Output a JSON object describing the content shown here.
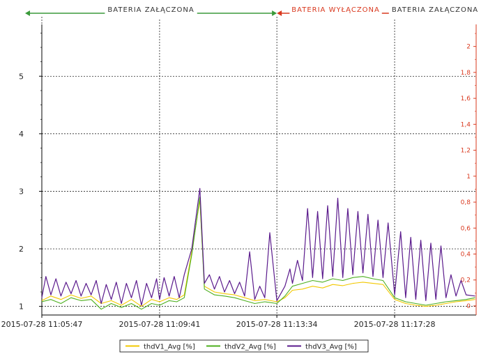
{
  "chart_data": {
    "type": "line",
    "title": "",
    "xlabel": "",
    "ylabel": "",
    "x_ticks": [
      "2015-07-28 11:05:47",
      "2015-07-28 11:09:41",
      "2015-07-28 11:13:34",
      "2015-07-28 11:17:28"
    ],
    "x_range": [
      "2015-07-28 11:05:47",
      "2015-07-28 11:20:10"
    ],
    "y_left": {
      "range": [
        0.85,
        5.9
      ],
      "ticks": [
        "1",
        "2",
        "3",
        "4",
        "5"
      ],
      "grid": true
    },
    "y_right": {
      "range": [
        -0.07,
        2.17
      ],
      "ticks": [
        "0",
        "0,2",
        "0,4",
        "0,6",
        "0,8",
        "1",
        "1,2",
        "1,4",
        "1,6",
        "1,8",
        "2"
      ],
      "color": "#d9381e"
    },
    "periods": [
      {
        "label": "BATERIA ZAŁĄCZONA",
        "start": "2015-07-28 11:04:40",
        "end": "2015-07-28 11:13:34",
        "color": "#3a9a3a"
      },
      {
        "label": "BATERIA WYŁĄCZONA",
        "start": "2015-07-28 11:13:34",
        "end": "2015-07-28 11:17:28",
        "color": "#d9381e"
      },
      {
        "label": "BATERIA ZAŁĄCZONA",
        "start": "2015-07-28 11:17:28",
        "end": "2015-07-28 11:20:10",
        "color": "#3a9a3a"
      }
    ],
    "vertical_grid_at": [
      "2015-07-28 11:05:47",
      "2015-07-28 11:09:41",
      "2015-07-28 11:13:34",
      "2015-07-28 11:17:28"
    ],
    "series": [
      {
        "name": "thdV1_Avg [%]",
        "color": "#f2c800",
        "points": [
          [
            "2015-07-28 11:05:47",
            1.1
          ],
          [
            "2015-07-28 11:06:05",
            1.18
          ],
          [
            "2015-07-28 11:06:25",
            1.12
          ],
          [
            "2015-07-28 11:06:45",
            1.2
          ],
          [
            "2015-07-28 11:07:05",
            1.14
          ],
          [
            "2015-07-28 11:07:25",
            1.18
          ],
          [
            "2015-07-28 11:07:45",
            1.05
          ],
          [
            "2015-07-28 11:08:05",
            1.1
          ],
          [
            "2015-07-28 11:08:25",
            1.02
          ],
          [
            "2015-07-28 11:08:45",
            1.12
          ],
          [
            "2015-07-28 11:09:05",
            1.0
          ],
          [
            "2015-07-28 11:09:25",
            1.12
          ],
          [
            "2015-07-28 11:09:41",
            1.08
          ],
          [
            "2015-07-28 11:10:00",
            1.15
          ],
          [
            "2015-07-28 11:10:15",
            1.12
          ],
          [
            "2015-07-28 11:10:30",
            1.2
          ],
          [
            "2015-07-28 11:10:45",
            1.95
          ],
          [
            "2015-07-28 11:11:01",
            2.85
          ],
          [
            "2015-07-28 11:11:10",
            1.35
          ],
          [
            "2015-07-28 11:11:30",
            1.25
          ],
          [
            "2015-07-28 11:11:50",
            1.22
          ],
          [
            "2015-07-28 11:12:10",
            1.2
          ],
          [
            "2015-07-28 11:12:30",
            1.15
          ],
          [
            "2015-07-28 11:12:50",
            1.1
          ],
          [
            "2015-07-28 11:13:10",
            1.12
          ],
          [
            "2015-07-28 11:13:34",
            1.08
          ],
          [
            "2015-07-28 11:13:50",
            1.15
          ],
          [
            "2015-07-28 11:14:05",
            1.28
          ],
          [
            "2015-07-28 11:14:25",
            1.3
          ],
          [
            "2015-07-28 11:14:45",
            1.35
          ],
          [
            "2015-07-28 11:15:05",
            1.32
          ],
          [
            "2015-07-28 11:15:25",
            1.38
          ],
          [
            "2015-07-28 11:15:45",
            1.36
          ],
          [
            "2015-07-28 11:16:05",
            1.4
          ],
          [
            "2015-07-28 11:16:25",
            1.42
          ],
          [
            "2015-07-28 11:16:45",
            1.4
          ],
          [
            "2015-07-28 11:17:05",
            1.38
          ],
          [
            "2015-07-28 11:17:28",
            1.12
          ],
          [
            "2015-07-28 11:17:50",
            1.05
          ],
          [
            "2015-07-28 11:18:10",
            1.02
          ],
          [
            "2015-07-28 11:18:30",
            1.0
          ],
          [
            "2015-07-28 11:18:50",
            1.02
          ],
          [
            "2015-07-28 11:19:10",
            1.05
          ],
          [
            "2015-07-28 11:19:30",
            1.08
          ],
          [
            "2015-07-28 11:19:50",
            1.1
          ],
          [
            "2015-07-28 11:20:08",
            1.12
          ]
        ]
      },
      {
        "name": "thdV2_Avg [%]",
        "color": "#4caf1e",
        "points": [
          [
            "2015-07-28 11:05:47",
            1.08
          ],
          [
            "2015-07-28 11:06:05",
            1.12
          ],
          [
            "2015-07-28 11:06:25",
            1.05
          ],
          [
            "2015-07-28 11:06:45",
            1.15
          ],
          [
            "2015-07-28 11:07:05",
            1.1
          ],
          [
            "2015-07-28 11:07:25",
            1.12
          ],
          [
            "2015-07-28 11:07:45",
            0.95
          ],
          [
            "2015-07-28 11:08:05",
            1.05
          ],
          [
            "2015-07-28 11:08:25",
            0.98
          ],
          [
            "2015-07-28 11:08:45",
            1.05
          ],
          [
            "2015-07-28 11:09:05",
            0.95
          ],
          [
            "2015-07-28 11:09:25",
            1.05
          ],
          [
            "2015-07-28 11:09:41",
            1.02
          ],
          [
            "2015-07-28 11:10:00",
            1.1
          ],
          [
            "2015-07-28 11:10:15",
            1.08
          ],
          [
            "2015-07-28 11:10:30",
            1.15
          ],
          [
            "2015-07-28 11:10:45",
            1.9
          ],
          [
            "2015-07-28 11:11:01",
            2.9
          ],
          [
            "2015-07-28 11:11:10",
            1.3
          ],
          [
            "2015-07-28 11:11:30",
            1.2
          ],
          [
            "2015-07-28 11:11:50",
            1.18
          ],
          [
            "2015-07-28 11:12:10",
            1.15
          ],
          [
            "2015-07-28 11:12:30",
            1.1
          ],
          [
            "2015-07-28 11:12:50",
            1.05
          ],
          [
            "2015-07-28 11:13:10",
            1.08
          ],
          [
            "2015-07-28 11:13:34",
            1.05
          ],
          [
            "2015-07-28 11:13:50",
            1.18
          ],
          [
            "2015-07-28 11:14:05",
            1.35
          ],
          [
            "2015-07-28 11:14:25",
            1.4
          ],
          [
            "2015-07-28 11:14:45",
            1.45
          ],
          [
            "2015-07-28 11:15:05",
            1.42
          ],
          [
            "2015-07-28 11:15:25",
            1.48
          ],
          [
            "2015-07-28 11:15:45",
            1.45
          ],
          [
            "2015-07-28 11:16:05",
            1.5
          ],
          [
            "2015-07-28 11:16:25",
            1.52
          ],
          [
            "2015-07-28 11:16:45",
            1.48
          ],
          [
            "2015-07-28 11:17:05",
            1.45
          ],
          [
            "2015-07-28 11:17:28",
            1.15
          ],
          [
            "2015-07-28 11:17:50",
            1.08
          ],
          [
            "2015-07-28 11:18:10",
            1.05
          ],
          [
            "2015-07-28 11:18:30",
            1.02
          ],
          [
            "2015-07-28 11:18:50",
            1.05
          ],
          [
            "2015-07-28 11:19:10",
            1.08
          ],
          [
            "2015-07-28 11:19:30",
            1.1
          ],
          [
            "2015-07-28 11:19:50",
            1.12
          ],
          [
            "2015-07-28 11:20:08",
            1.15
          ]
        ]
      },
      {
        "name": "thdV3_Avg [%]",
        "color": "#5a1a8c",
        "points": [
          [
            "2015-07-28 11:05:47",
            1.15
          ],
          [
            "2015-07-28 11:05:55",
            1.52
          ],
          [
            "2015-07-28 11:06:05",
            1.2
          ],
          [
            "2015-07-28 11:06:15",
            1.48
          ],
          [
            "2015-07-28 11:06:25",
            1.18
          ],
          [
            "2015-07-28 11:06:35",
            1.42
          ],
          [
            "2015-07-28 11:06:45",
            1.22
          ],
          [
            "2015-07-28 11:06:55",
            1.45
          ],
          [
            "2015-07-28 11:07:05",
            1.18
          ],
          [
            "2015-07-28 11:07:15",
            1.4
          ],
          [
            "2015-07-28 11:07:25",
            1.2
          ],
          [
            "2015-07-28 11:07:35",
            1.45
          ],
          [
            "2015-07-28 11:07:45",
            1.05
          ],
          [
            "2015-07-28 11:07:55",
            1.38
          ],
          [
            "2015-07-28 11:08:05",
            1.12
          ],
          [
            "2015-07-28 11:08:15",
            1.42
          ],
          [
            "2015-07-28 11:08:25",
            1.05
          ],
          [
            "2015-07-28 11:08:35",
            1.4
          ],
          [
            "2015-07-28 11:08:45",
            1.15
          ],
          [
            "2015-07-28 11:08:55",
            1.45
          ],
          [
            "2015-07-28 11:09:05",
            1.02
          ],
          [
            "2015-07-28 11:09:15",
            1.4
          ],
          [
            "2015-07-28 11:09:25",
            1.15
          ],
          [
            "2015-07-28 11:09:35",
            1.48
          ],
          [
            "2015-07-28 11:09:41",
            1.12
          ],
          [
            "2015-07-28 11:09:50",
            1.5
          ],
          [
            "2015-07-28 11:10:00",
            1.18
          ],
          [
            "2015-07-28 11:10:10",
            1.52
          ],
          [
            "2015-07-28 11:10:20",
            1.15
          ],
          [
            "2015-07-28 11:10:30",
            1.55
          ],
          [
            "2015-07-28 11:10:45",
            2.0
          ],
          [
            "2015-07-28 11:11:01",
            3.05
          ],
          [
            "2015-07-28 11:11:10",
            1.4
          ],
          [
            "2015-07-28 11:11:20",
            1.55
          ],
          [
            "2015-07-28 11:11:30",
            1.3
          ],
          [
            "2015-07-28 11:11:40",
            1.52
          ],
          [
            "2015-07-28 11:11:50",
            1.25
          ],
          [
            "2015-07-28 11:12:00",
            1.45
          ],
          [
            "2015-07-28 11:12:10",
            1.22
          ],
          [
            "2015-07-28 11:12:20",
            1.42
          ],
          [
            "2015-07-28 11:12:30",
            1.18
          ],
          [
            "2015-07-28 11:12:40",
            1.95
          ],
          [
            "2015-07-28 11:12:50",
            1.12
          ],
          [
            "2015-07-28 11:13:00",
            1.35
          ],
          [
            "2015-07-28 11:13:10",
            1.15
          ],
          [
            "2015-07-28 11:13:20",
            2.28
          ],
          [
            "2015-07-28 11:13:34",
            1.1
          ],
          [
            "2015-07-28 11:13:50",
            1.35
          ],
          [
            "2015-07-28 11:14:00",
            1.65
          ],
          [
            "2015-07-28 11:14:05",
            1.4
          ],
          [
            "2015-07-28 11:14:15",
            1.8
          ],
          [
            "2015-07-28 11:14:25",
            1.45
          ],
          [
            "2015-07-28 11:14:35",
            2.7
          ],
          [
            "2015-07-28 11:14:45",
            1.5
          ],
          [
            "2015-07-28 11:14:55",
            2.65
          ],
          [
            "2015-07-28 11:15:05",
            1.48
          ],
          [
            "2015-07-28 11:15:15",
            2.75
          ],
          [
            "2015-07-28 11:15:25",
            1.52
          ],
          [
            "2015-07-28 11:15:35",
            2.88
          ],
          [
            "2015-07-28 11:15:45",
            1.5
          ],
          [
            "2015-07-28 11:15:55",
            2.7
          ],
          [
            "2015-07-28 11:16:05",
            1.55
          ],
          [
            "2015-07-28 11:16:15",
            2.65
          ],
          [
            "2015-07-28 11:16:25",
            1.58
          ],
          [
            "2015-07-28 11:16:35",
            2.6
          ],
          [
            "2015-07-28 11:16:45",
            1.52
          ],
          [
            "2015-07-28 11:16:55",
            2.5
          ],
          [
            "2015-07-28 11:17:05",
            1.5
          ],
          [
            "2015-07-28 11:17:15",
            2.45
          ],
          [
            "2015-07-28 11:17:28",
            1.2
          ],
          [
            "2015-07-28 11:17:40",
            2.3
          ],
          [
            "2015-07-28 11:17:50",
            1.15
          ],
          [
            "2015-07-28 11:18:00",
            2.2
          ],
          [
            "2015-07-28 11:18:10",
            1.12
          ],
          [
            "2015-07-28 11:18:20",
            2.15
          ],
          [
            "2015-07-28 11:18:30",
            1.1
          ],
          [
            "2015-07-28 11:18:40",
            2.1
          ],
          [
            "2015-07-28 11:18:50",
            1.12
          ],
          [
            "2015-07-28 11:19:00",
            2.05
          ],
          [
            "2015-07-28 11:19:10",
            1.15
          ],
          [
            "2015-07-28 11:19:20",
            1.55
          ],
          [
            "2015-07-28 11:19:30",
            1.18
          ],
          [
            "2015-07-28 11:19:40",
            1.45
          ],
          [
            "2015-07-28 11:19:50",
            1.2
          ],
          [
            "2015-07-28 11:20:08",
            1.18
          ]
        ]
      }
    ],
    "legend": {
      "placement": "bottom-center"
    }
  }
}
